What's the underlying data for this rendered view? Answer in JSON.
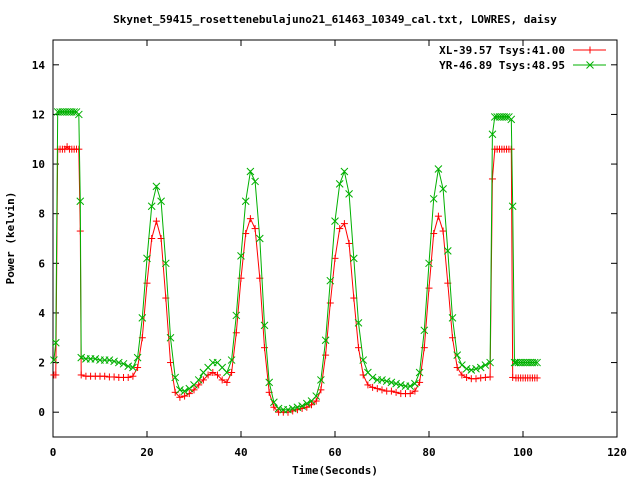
{
  "chart_data": {
    "type": "line",
    "title": "Skynet_59415_rosettenebulajuno21_61463_10349_cal.txt, LOWRES, daisy",
    "xlabel": "Time(Seconds)",
    "ylabel": "Power (kelvin)",
    "xlim": [
      0,
      120
    ],
    "ylim": [
      -1,
      15
    ],
    "xticks": [
      0,
      20,
      40,
      60,
      80,
      100,
      120
    ],
    "yticks": [
      0,
      2,
      4,
      6,
      8,
      10,
      12,
      14
    ],
    "grid": false,
    "legend_position": "top-right",
    "series": [
      {
        "name": "XL-39.57 Tsys:41.00",
        "color": "#ff0000",
        "marker": "plus",
        "points": [
          [
            0.2,
            1.5
          ],
          [
            0.6,
            1.5
          ],
          [
            1.0,
            10.6
          ],
          [
            1.5,
            10.6
          ],
          [
            2.0,
            10.6
          ],
          [
            2.5,
            10.6
          ],
          [
            3.0,
            10.7
          ],
          [
            3.5,
            10.6
          ],
          [
            4.0,
            10.6
          ],
          [
            4.5,
            10.6
          ],
          [
            5.0,
            10.6
          ],
          [
            5.5,
            10.6
          ],
          [
            5.8,
            7.3
          ],
          [
            6.0,
            1.5
          ],
          [
            7,
            1.45
          ],
          [
            8,
            1.45
          ],
          [
            9,
            1.45
          ],
          [
            10,
            1.45
          ],
          [
            11,
            1.45
          ],
          [
            12,
            1.42
          ],
          [
            13,
            1.42
          ],
          [
            14,
            1.4
          ],
          [
            15,
            1.4
          ],
          [
            16,
            1.4
          ],
          [
            17,
            1.45
          ],
          [
            18,
            1.8
          ],
          [
            19,
            3.0
          ],
          [
            20,
            5.2
          ],
          [
            21,
            7.0
          ],
          [
            22,
            7.7
          ],
          [
            23,
            7.0
          ],
          [
            24,
            4.6
          ],
          [
            25,
            2.0
          ],
          [
            26,
            0.8
          ],
          [
            27,
            0.6
          ],
          [
            28,
            0.65
          ],
          [
            29,
            0.75
          ],
          [
            30,
            0.9
          ],
          [
            31,
            1.1
          ],
          [
            32,
            1.3
          ],
          [
            33,
            1.5
          ],
          [
            34,
            1.6
          ],
          [
            35,
            1.5
          ],
          [
            36,
            1.3
          ],
          [
            37,
            1.2
          ],
          [
            38,
            1.6
          ],
          [
            39,
            3.2
          ],
          [
            40,
            5.4
          ],
          [
            41,
            7.2
          ],
          [
            42,
            7.8
          ],
          [
            43,
            7.4
          ],
          [
            44,
            5.4
          ],
          [
            45,
            2.6
          ],
          [
            46,
            0.8
          ],
          [
            47,
            0.2
          ],
          [
            48,
            0.0
          ],
          [
            49,
            0.0
          ],
          [
            50,
            0.0
          ],
          [
            51,
            0.05
          ],
          [
            52,
            0.1
          ],
          [
            53,
            0.15
          ],
          [
            54,
            0.2
          ],
          [
            55,
            0.3
          ],
          [
            56,
            0.45
          ],
          [
            57,
            0.9
          ],
          [
            58,
            2.3
          ],
          [
            59,
            4.4
          ],
          [
            60,
            6.2
          ],
          [
            61,
            7.4
          ],
          [
            62,
            7.6
          ],
          [
            63,
            6.8
          ],
          [
            64,
            4.6
          ],
          [
            65,
            2.6
          ],
          [
            66,
            1.5
          ],
          [
            67,
            1.1
          ],
          [
            68,
            1.0
          ],
          [
            69,
            0.95
          ],
          [
            70,
            0.9
          ],
          [
            71,
            0.85
          ],
          [
            72,
            0.85
          ],
          [
            73,
            0.8
          ],
          [
            74,
            0.75
          ],
          [
            75,
            0.75
          ],
          [
            76,
            0.75
          ],
          [
            77,
            0.85
          ],
          [
            78,
            1.2
          ],
          [
            79,
            2.6
          ],
          [
            80,
            5.0
          ],
          [
            81,
            7.2
          ],
          [
            82,
            7.9
          ],
          [
            83,
            7.3
          ],
          [
            84,
            5.2
          ],
          [
            85,
            3.0
          ],
          [
            86,
            1.8
          ],
          [
            87,
            1.5
          ],
          [
            88,
            1.4
          ],
          [
            89,
            1.35
          ],
          [
            90,
            1.35
          ],
          [
            91,
            1.38
          ],
          [
            92,
            1.4
          ],
          [
            93,
            1.42
          ],
          [
            93.5,
            9.4
          ],
          [
            94,
            10.6
          ],
          [
            94.5,
            10.6
          ],
          [
            95,
            10.6
          ],
          [
            95.5,
            10.6
          ],
          [
            96,
            10.6
          ],
          [
            96.5,
            10.6
          ],
          [
            97,
            10.6
          ],
          [
            97.5,
            10.6
          ],
          [
            97.8,
            1.4
          ],
          [
            98.5,
            1.38
          ],
          [
            99,
            1.38
          ],
          [
            99.5,
            1.38
          ],
          [
            100,
            1.38
          ],
          [
            100.5,
            1.38
          ],
          [
            101,
            1.38
          ],
          [
            101.5,
            1.38
          ],
          [
            102,
            1.38
          ],
          [
            102.5,
            1.38
          ],
          [
            103,
            1.38
          ]
        ]
      },
      {
        "name": "YR-46.89 Tsys:48.95",
        "color": "#00b000",
        "marker": "x",
        "points": [
          [
            0.2,
            2.1
          ],
          [
            0.6,
            2.8
          ],
          [
            1.0,
            12.1
          ],
          [
            1.5,
            12.1
          ],
          [
            2.0,
            12.1
          ],
          [
            2.5,
            12.1
          ],
          [
            3.0,
            12.1
          ],
          [
            3.5,
            12.1
          ],
          [
            4.0,
            12.1
          ],
          [
            4.5,
            12.1
          ],
          [
            5.0,
            12.1
          ],
          [
            5.5,
            12.0
          ],
          [
            5.8,
            8.5
          ],
          [
            6.0,
            2.2
          ],
          [
            7,
            2.15
          ],
          [
            8,
            2.15
          ],
          [
            9,
            2.15
          ],
          [
            10,
            2.1
          ],
          [
            11,
            2.1
          ],
          [
            12,
            2.1
          ],
          [
            13,
            2.05
          ],
          [
            14,
            2.0
          ],
          [
            15,
            1.95
          ],
          [
            16,
            1.85
          ],
          [
            17,
            1.8
          ],
          [
            18,
            2.2
          ],
          [
            19,
            3.8
          ],
          [
            20,
            6.2
          ],
          [
            21,
            8.3
          ],
          [
            22,
            9.1
          ],
          [
            23,
            8.5
          ],
          [
            24,
            6.0
          ],
          [
            25,
            3.0
          ],
          [
            26,
            1.4
          ],
          [
            27,
            0.9
          ],
          [
            28,
            0.85
          ],
          [
            29,
            0.95
          ],
          [
            30,
            1.1
          ],
          [
            31,
            1.3
          ],
          [
            32,
            1.6
          ],
          [
            33,
            1.8
          ],
          [
            34,
            2.0
          ],
          [
            35,
            2.0
          ],
          [
            36,
            1.8
          ],
          [
            37,
            1.6
          ],
          [
            38,
            2.1
          ],
          [
            39,
            3.9
          ],
          [
            40,
            6.3
          ],
          [
            41,
            8.5
          ],
          [
            42,
            9.7
          ],
          [
            43,
            9.3
          ],
          [
            44,
            7.0
          ],
          [
            45,
            3.5
          ],
          [
            46,
            1.2
          ],
          [
            47,
            0.4
          ],
          [
            48,
            0.15
          ],
          [
            49,
            0.1
          ],
          [
            50,
            0.1
          ],
          [
            51,
            0.15
          ],
          [
            52,
            0.2
          ],
          [
            53,
            0.25
          ],
          [
            54,
            0.35
          ],
          [
            55,
            0.45
          ],
          [
            56,
            0.65
          ],
          [
            57,
            1.3
          ],
          [
            58,
            2.9
          ],
          [
            59,
            5.3
          ],
          [
            60,
            7.7
          ],
          [
            61,
            9.2
          ],
          [
            62,
            9.7
          ],
          [
            63,
            8.8
          ],
          [
            64,
            6.2
          ],
          [
            65,
            3.6
          ],
          [
            66,
            2.1
          ],
          [
            67,
            1.6
          ],
          [
            68,
            1.4
          ],
          [
            69,
            1.3
          ],
          [
            70,
            1.3
          ],
          [
            71,
            1.25
          ],
          [
            72,
            1.2
          ],
          [
            73,
            1.15
          ],
          [
            74,
            1.1
          ],
          [
            75,
            1.05
          ],
          [
            76,
            1.05
          ],
          [
            77,
            1.15
          ],
          [
            78,
            1.6
          ],
          [
            79,
            3.3
          ],
          [
            80,
            6.0
          ],
          [
            81,
            8.6
          ],
          [
            82,
            9.8
          ],
          [
            83,
            9.0
          ],
          [
            84,
            6.5
          ],
          [
            85,
            3.8
          ],
          [
            86,
            2.3
          ],
          [
            87,
            1.9
          ],
          [
            88,
            1.75
          ],
          [
            89,
            1.7
          ],
          [
            90,
            1.75
          ],
          [
            91,
            1.8
          ],
          [
            92,
            1.9
          ],
          [
            93,
            2.0
          ],
          [
            93.5,
            11.2
          ],
          [
            94,
            11.9
          ],
          [
            94.5,
            11.9
          ],
          [
            95,
            11.9
          ],
          [
            95.5,
            11.9
          ],
          [
            96,
            11.9
          ],
          [
            96.5,
            11.9
          ],
          [
            97,
            11.9
          ],
          [
            97.5,
            11.8
          ],
          [
            97.8,
            8.3
          ],
          [
            98.2,
            2.0
          ],
          [
            98.5,
            2.0
          ],
          [
            99,
            2.0
          ],
          [
            99.5,
            2.0
          ],
          [
            100,
            2.0
          ],
          [
            100.5,
            2.0
          ],
          [
            101,
            2.0
          ],
          [
            101.5,
            2.0
          ],
          [
            102,
            2.0
          ],
          [
            102.5,
            2.0
          ],
          [
            103,
            2.0
          ]
        ]
      }
    ]
  }
}
